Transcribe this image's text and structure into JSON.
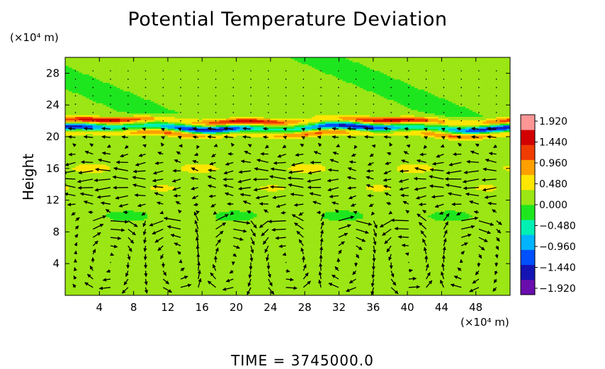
{
  "chart_data": {
    "type": "heatmap",
    "title": "Potential Temperature Deviation",
    "ylabel": "Height",
    "y_unit": "(×10⁴ m)",
    "x_unit": "(×10⁴ m)",
    "footer": "TIME  =  3745000.0",
    "xlim": [
      0,
      52
    ],
    "ylim": [
      0,
      30
    ],
    "x_ticks": [
      "4",
      "8",
      "12",
      "16",
      "20",
      "24",
      "28",
      "32",
      "36",
      "40",
      "44",
      "48"
    ],
    "y_ticks": [
      "4",
      "8",
      "12",
      "16",
      "20",
      "24",
      "28"
    ],
    "colorbar": {
      "min": -1.92,
      "max": 1.92,
      "labels": [
        "1.920",
        "1.440",
        "0.960",
        "0.480",
        "0.000",
        "−0.480",
        "−0.960",
        "−1.440",
        "−1.920"
      ],
      "colors": [
        "#6a0dad",
        "#1414b4",
        "#0050ff",
        "#00b4ff",
        "#00f0b4",
        "#1ee61e",
        "#9be614",
        "#ffe600",
        "#ffa000",
        "#f03c00",
        "#d20000",
        "#ff9696"
      ]
    },
    "background_value": 0.1,
    "features": {
      "upper_band_heights": [
        22.0,
        21.1,
        20.3
      ],
      "upper_band_values": [
        1.4,
        -1.6,
        0.9
      ],
      "mid_band_heights": [
        16.0,
        13.5,
        10.0
      ],
      "mid_band_values": [
        0.3,
        0.25,
        -0.15
      ],
      "circulation_cells_x": [
        5,
        13,
        19,
        26,
        33,
        40,
        47
      ],
      "circulation_height_range": [
        0,
        8.5
      ]
    }
  }
}
